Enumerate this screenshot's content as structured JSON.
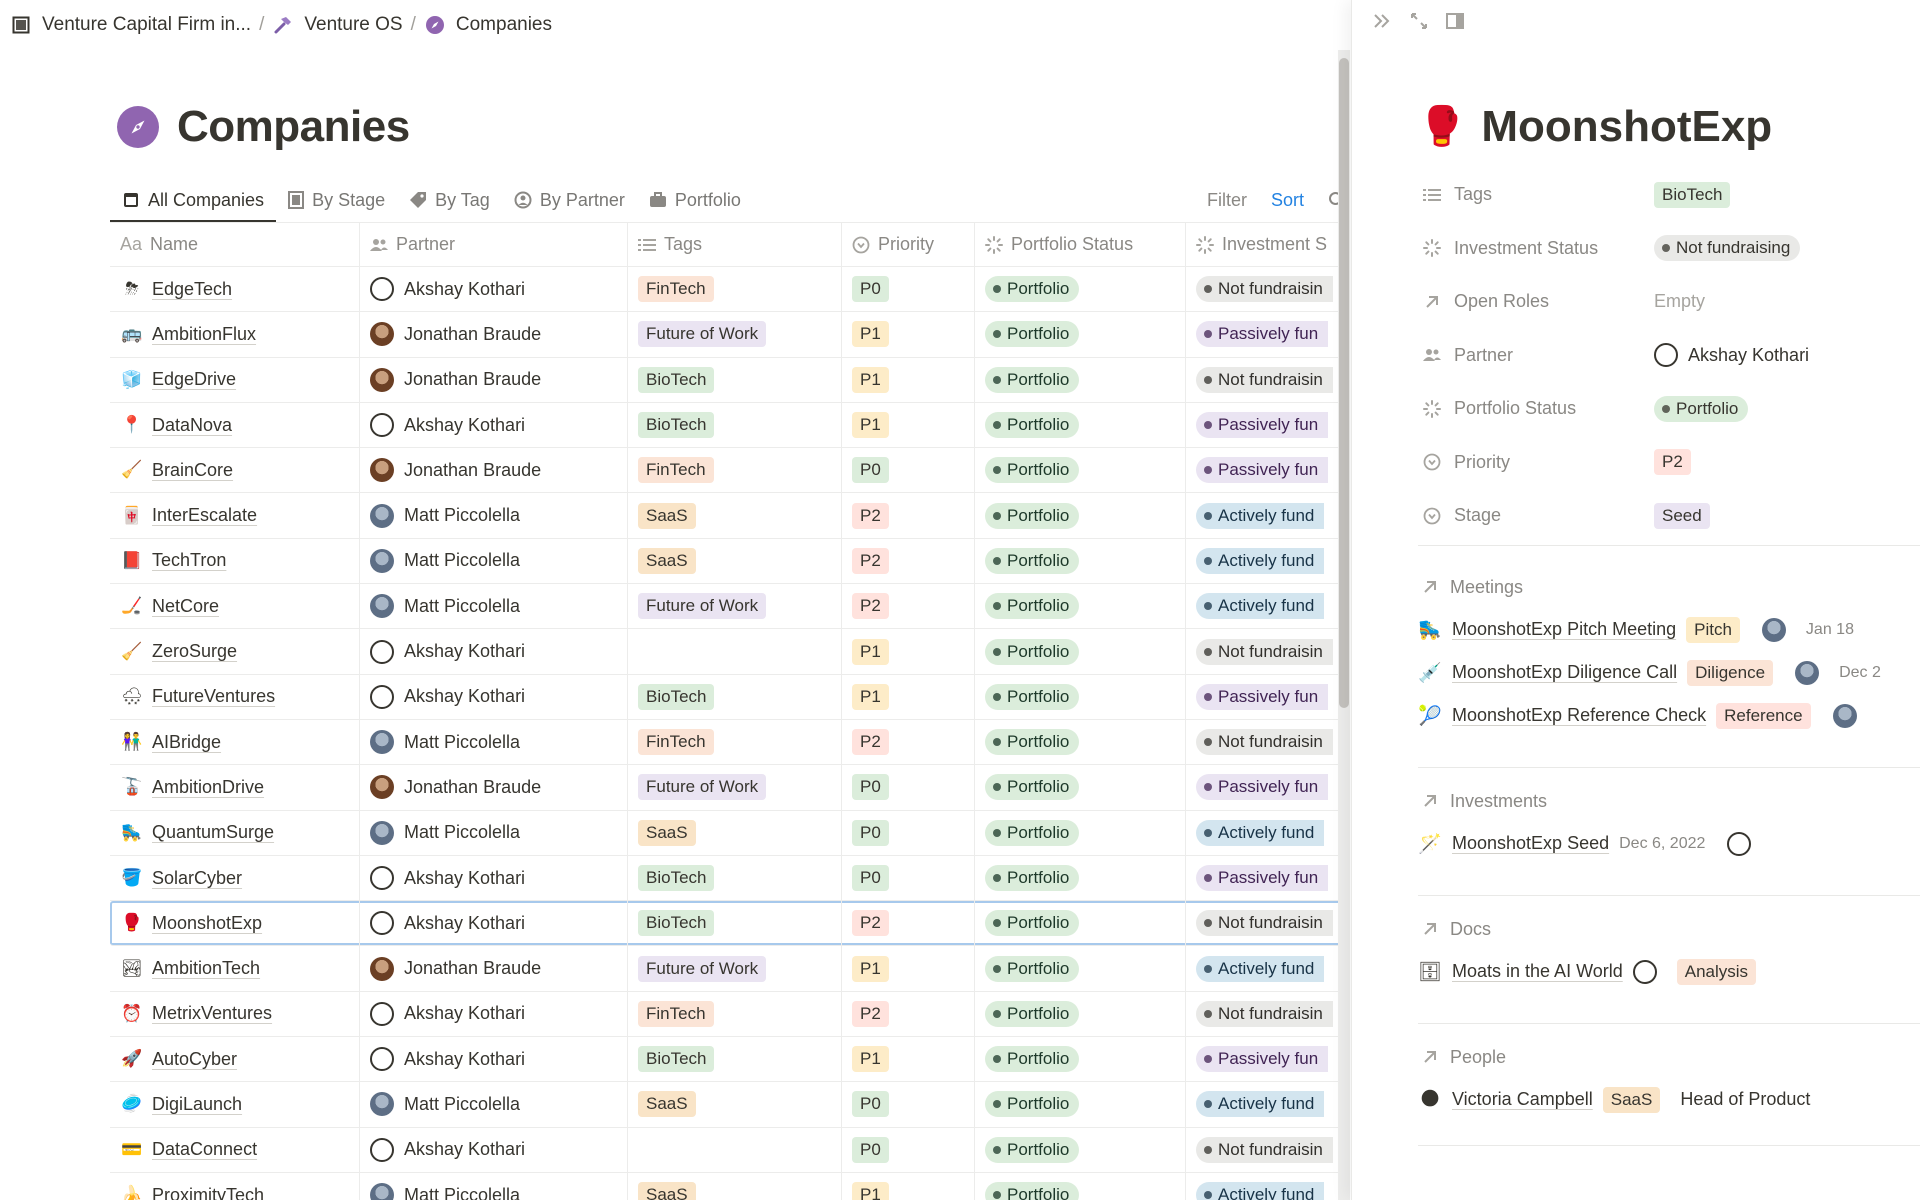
{
  "breadcrumb": [
    {
      "label": "Venture Capital Firm in...",
      "icon": "book-icon"
    },
    {
      "label": "Venture OS",
      "icon": "hammer-icon"
    },
    {
      "label": "Companies",
      "icon": "compass-icon"
    }
  ],
  "page": {
    "title": "Companies",
    "icon": "compass-icon"
  },
  "tabs": [
    {
      "label": "All Companies",
      "icon": "calendar-square-icon",
      "active": true
    },
    {
      "label": "By Stage",
      "icon": "board-icon"
    },
    {
      "label": "By Tag",
      "icon": "tag-icon"
    },
    {
      "label": "By Partner",
      "icon": "person-circle-icon"
    },
    {
      "label": "Portfolio",
      "icon": "briefcase-icon"
    }
  ],
  "view_actions": {
    "filter": "Filter",
    "sort": "Sort"
  },
  "columns": [
    {
      "label": "Name",
      "prefix": "Aa"
    },
    {
      "label": "Partner",
      "icon": "people-icon"
    },
    {
      "label": "Tags",
      "icon": "list-icon"
    },
    {
      "label": "Priority",
      "icon": "chevron-circle-icon"
    },
    {
      "label": "Portfolio Status",
      "icon": "loading-icon"
    },
    {
      "label": "Investment S",
      "icon": "loading-icon"
    }
  ],
  "colors": {
    "FinTech": "#fbe4d6",
    "Future of Work": "#eae4f2",
    "BioTech": "#dbeddb",
    "SaaS": "#f9e4c7",
    "P0": "#dbeddb",
    "P1": "#fdecc8",
    "P2": "#ffe2dd",
    "Portfolio": "#dbeddb",
    "Not fundraisin": "#e9e9e7",
    "Passively fun": "#eae4f2",
    "Actively fund": "#d3e5ef"
  },
  "rows": [
    {
      "icon": "⛈",
      "name": "EdgeTech",
      "partner": "Akshay Kothari",
      "av": "line",
      "tag": "FinTech",
      "priority": "P0",
      "pstatus": "Portfolio",
      "inv": "Not fundraisin"
    },
    {
      "icon": "🚌",
      "name": "AmbitionFlux",
      "partner": "Jonathan Braude",
      "av": "j",
      "tag": "Future of Work",
      "priority": "P1",
      "pstatus": "Portfolio",
      "inv": "Passively fun"
    },
    {
      "icon": "🧊",
      "name": "EdgeDrive",
      "partner": "Jonathan Braude",
      "av": "j",
      "tag": "BioTech",
      "priority": "P1",
      "pstatus": "Portfolio",
      "inv": "Not fundraisin"
    },
    {
      "icon": "📍",
      "name": "DataNova",
      "partner": "Akshay Kothari",
      "av": "line",
      "tag": "BioTech",
      "priority": "P1",
      "pstatus": "Portfolio",
      "inv": "Passively fun"
    },
    {
      "icon": "🧹",
      "name": "BrainCore",
      "partner": "Jonathan Braude",
      "av": "j",
      "tag": "FinTech",
      "priority": "P0",
      "pstatus": "Portfolio",
      "inv": "Passively fun"
    },
    {
      "icon": "🀄",
      "name": "InterEscalate",
      "partner": "Matt Piccolella",
      "av": "m",
      "tag": "SaaS",
      "priority": "P2",
      "pstatus": "Portfolio",
      "inv": "Actively fund"
    },
    {
      "icon": "📕",
      "name": "TechTron",
      "partner": "Matt Piccolella",
      "av": "m",
      "tag": "SaaS",
      "priority": "P2",
      "pstatus": "Portfolio",
      "inv": "Actively fund"
    },
    {
      "icon": "🏒",
      "name": "NetCore",
      "partner": "Matt Piccolella",
      "av": "m",
      "tag": "Future of Work",
      "priority": "P2",
      "pstatus": "Portfolio",
      "inv": "Actively fund"
    },
    {
      "icon": "🧹",
      "name": "ZeroSurge",
      "partner": "Akshay Kothari",
      "av": "line",
      "tag": "",
      "priority": "P1",
      "pstatus": "Portfolio",
      "inv": "Not fundraisin"
    },
    {
      "icon": "🌨",
      "name": "FutureVentures",
      "partner": "Akshay Kothari",
      "av": "line",
      "tag": "BioTech",
      "priority": "P1",
      "pstatus": "Portfolio",
      "inv": "Passively fun"
    },
    {
      "icon": "👫",
      "name": "AIBridge",
      "partner": "Matt Piccolella",
      "av": "m",
      "tag": "FinTech",
      "priority": "P2",
      "pstatus": "Portfolio",
      "inv": "Not fundraisin"
    },
    {
      "icon": "🚡",
      "name": "AmbitionDrive",
      "partner": "Jonathan Braude",
      "av": "j",
      "tag": "Future of Work",
      "priority": "P0",
      "pstatus": "Portfolio",
      "inv": "Passively fun"
    },
    {
      "icon": "🛼",
      "name": "QuantumSurge",
      "partner": "Matt Piccolella",
      "av": "m",
      "tag": "SaaS",
      "priority": "P0",
      "pstatus": "Portfolio",
      "inv": "Actively fund"
    },
    {
      "icon": "🪣",
      "name": "SolarCyber",
      "partner": "Akshay Kothari",
      "av": "line",
      "tag": "BioTech",
      "priority": "P0",
      "pstatus": "Portfolio",
      "inv": "Passively fun"
    },
    {
      "icon": "🥊",
      "name": "MoonshotExp",
      "partner": "Akshay Kothari",
      "av": "line",
      "tag": "BioTech",
      "priority": "P2",
      "pstatus": "Portfolio",
      "inv": "Not fundraisin",
      "selected": true
    },
    {
      "icon": "🏞",
      "name": "AmbitionTech",
      "partner": "Jonathan Braude",
      "av": "j",
      "tag": "Future of Work",
      "priority": "P1",
      "pstatus": "Portfolio",
      "inv": "Actively fund"
    },
    {
      "icon": "⏰",
      "name": "MetrixVentures",
      "partner": "Akshay Kothari",
      "av": "line",
      "tag": "FinTech",
      "priority": "P2",
      "pstatus": "Portfolio",
      "inv": "Not fundraisin"
    },
    {
      "icon": "🚀",
      "name": "AutoCyber",
      "partner": "Akshay Kothari",
      "av": "line",
      "tag": "BioTech",
      "priority": "P1",
      "pstatus": "Portfolio",
      "inv": "Passively fun"
    },
    {
      "icon": "🥏",
      "name": "DigiLaunch",
      "partner": "Matt Piccolella",
      "av": "m",
      "tag": "SaaS",
      "priority": "P0",
      "pstatus": "Portfolio",
      "inv": "Actively fund"
    },
    {
      "icon": "💳",
      "name": "DataConnect",
      "partner": "Akshay Kothari",
      "av": "line",
      "tag": "",
      "priority": "P0",
      "pstatus": "Portfolio",
      "inv": "Not fundraisin"
    },
    {
      "icon": "🍌",
      "name": "ProximityTech",
      "partner": "Matt Piccolella",
      "av": "m",
      "tag": "SaaS",
      "priority": "P1",
      "pstatus": "Portfolio",
      "inv": "Actively fund"
    }
  ],
  "panel": {
    "title": "MoonshotExp",
    "icon": "boxing-glove-icon",
    "props": [
      {
        "key": "Tags",
        "icon": "list-icon",
        "value": "BioTech",
        "style": "tag",
        "color": "#dbeddb"
      },
      {
        "key": "Investment Status",
        "icon": "loading-icon",
        "value": "Not fundraising",
        "style": "dot",
        "color": "#e9e9e7"
      },
      {
        "key": "Open Roles",
        "icon": "arrow-up-right-icon",
        "value": "Empty",
        "style": "empty"
      },
      {
        "key": "Partner",
        "icon": "people-icon",
        "value": "Akshay Kothari",
        "style": "person"
      },
      {
        "key": "Portfolio Status",
        "icon": "loading-icon",
        "value": "Portfolio",
        "style": "dot",
        "color": "#dbeddb"
      },
      {
        "key": "Priority",
        "icon": "chevron-circle-icon",
        "value": "P2",
        "style": "tag",
        "color": "#ffe2dd"
      },
      {
        "key": "Stage",
        "icon": "chevron-circle-icon",
        "value": "Seed",
        "style": "tag",
        "color": "#eae4f2"
      }
    ],
    "meetings": {
      "label": "Meetings",
      "items": [
        {
          "icon": "🛼",
          "title": "MoonshotExp Pitch Meeting",
          "tag": "Pitch",
          "tag_color": "#fdecc8",
          "date": "Jan 18"
        },
        {
          "icon": "💉",
          "title": "MoonshotExp Diligence Call",
          "tag": "Diligence",
          "tag_color": "#fbe4d6",
          "date": "Dec 2"
        },
        {
          "icon": "🎾",
          "title": "MoonshotExp Reference Check",
          "tag": "Reference",
          "tag_color": "#ffe2dd",
          "date": ""
        }
      ]
    },
    "investments": {
      "label": "Investments",
      "items": [
        {
          "icon": "🪄",
          "title": "MoonshotExp Seed",
          "date": "Dec 6, 2022"
        }
      ]
    },
    "docs": {
      "label": "Docs",
      "items": [
        {
          "icon": "🗄",
          "title": "Moats in the AI World",
          "tag": "Analysis",
          "tag_color": "#fbe4d6"
        }
      ]
    },
    "people": {
      "label": "People",
      "items": [
        {
          "icon": "🌑",
          "title": "Victoria Campbell",
          "tag": "SaaS",
          "tag_color": "#f9e4c7",
          "role": "Head of Product"
        }
      ]
    }
  }
}
